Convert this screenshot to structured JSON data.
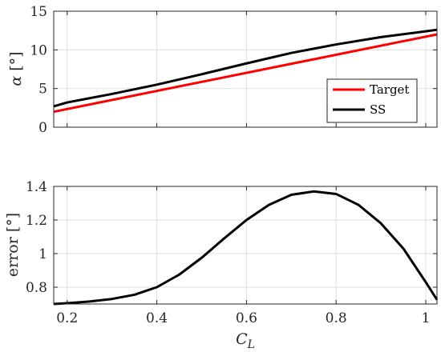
{
  "chart_data": [
    {
      "type": "line",
      "title": "",
      "xlabel": "",
      "ylabel_symbol": "α",
      "ylabel_unit": "[°]",
      "xlim": [
        0.17,
        1.025
      ],
      "ylim": [
        0,
        15
      ],
      "xticks": [
        0.2,
        0.4,
        0.6,
        0.8,
        1.0
      ],
      "yticks": [
        0,
        5,
        10,
        15
      ],
      "ytick_labels": [
        "0",
        "5",
        "10",
        "15"
      ],
      "grid": true,
      "legend_position": "lower-right",
      "series": [
        {
          "name": "Target",
          "color": "#ff0000",
          "x": [
            0.17,
            1.025
          ],
          "y": [
            2.0,
            12.0
          ]
        },
        {
          "name": "SS",
          "color": "#000000",
          "x": [
            0.17,
            0.2,
            0.3,
            0.4,
            0.5,
            0.6,
            0.7,
            0.8,
            0.9,
            1.0,
            1.025
          ],
          "y": [
            2.7,
            3.2,
            4.3,
            5.5,
            6.85,
            8.25,
            9.6,
            10.7,
            11.65,
            12.4,
            12.6
          ]
        }
      ]
    },
    {
      "type": "line",
      "title": "",
      "xlabel_symbol": "C",
      "xlabel_subscript": "L",
      "ylabel": "error [°]",
      "xlim": [
        0.17,
        1.025
      ],
      "ylim": [
        0.7,
        1.4
      ],
      "xticks": [
        0.2,
        0.4,
        0.6,
        0.8,
        1.0
      ],
      "xtick_labels": [
        "0.2",
        "0.4",
        "0.6",
        "0.8",
        "1"
      ],
      "yticks": [
        0.8,
        1.0,
        1.2,
        1.4
      ],
      "ytick_labels": [
        "0.8",
        "1",
        "1.2",
        "1.4"
      ],
      "grid": true,
      "series": [
        {
          "color": "#000000",
          "x": [
            0.17,
            0.2,
            0.25,
            0.3,
            0.35,
            0.4,
            0.45,
            0.5,
            0.55,
            0.6,
            0.65,
            0.7,
            0.75,
            0.8,
            0.85,
            0.9,
            0.95,
            1.0,
            1.025
          ],
          "y": [
            0.7,
            0.705,
            0.715,
            0.73,
            0.755,
            0.8,
            0.875,
            0.975,
            1.09,
            1.2,
            1.29,
            1.35,
            1.37,
            1.355,
            1.29,
            1.18,
            1.03,
            0.83,
            0.725
          ]
        }
      ]
    }
  ]
}
